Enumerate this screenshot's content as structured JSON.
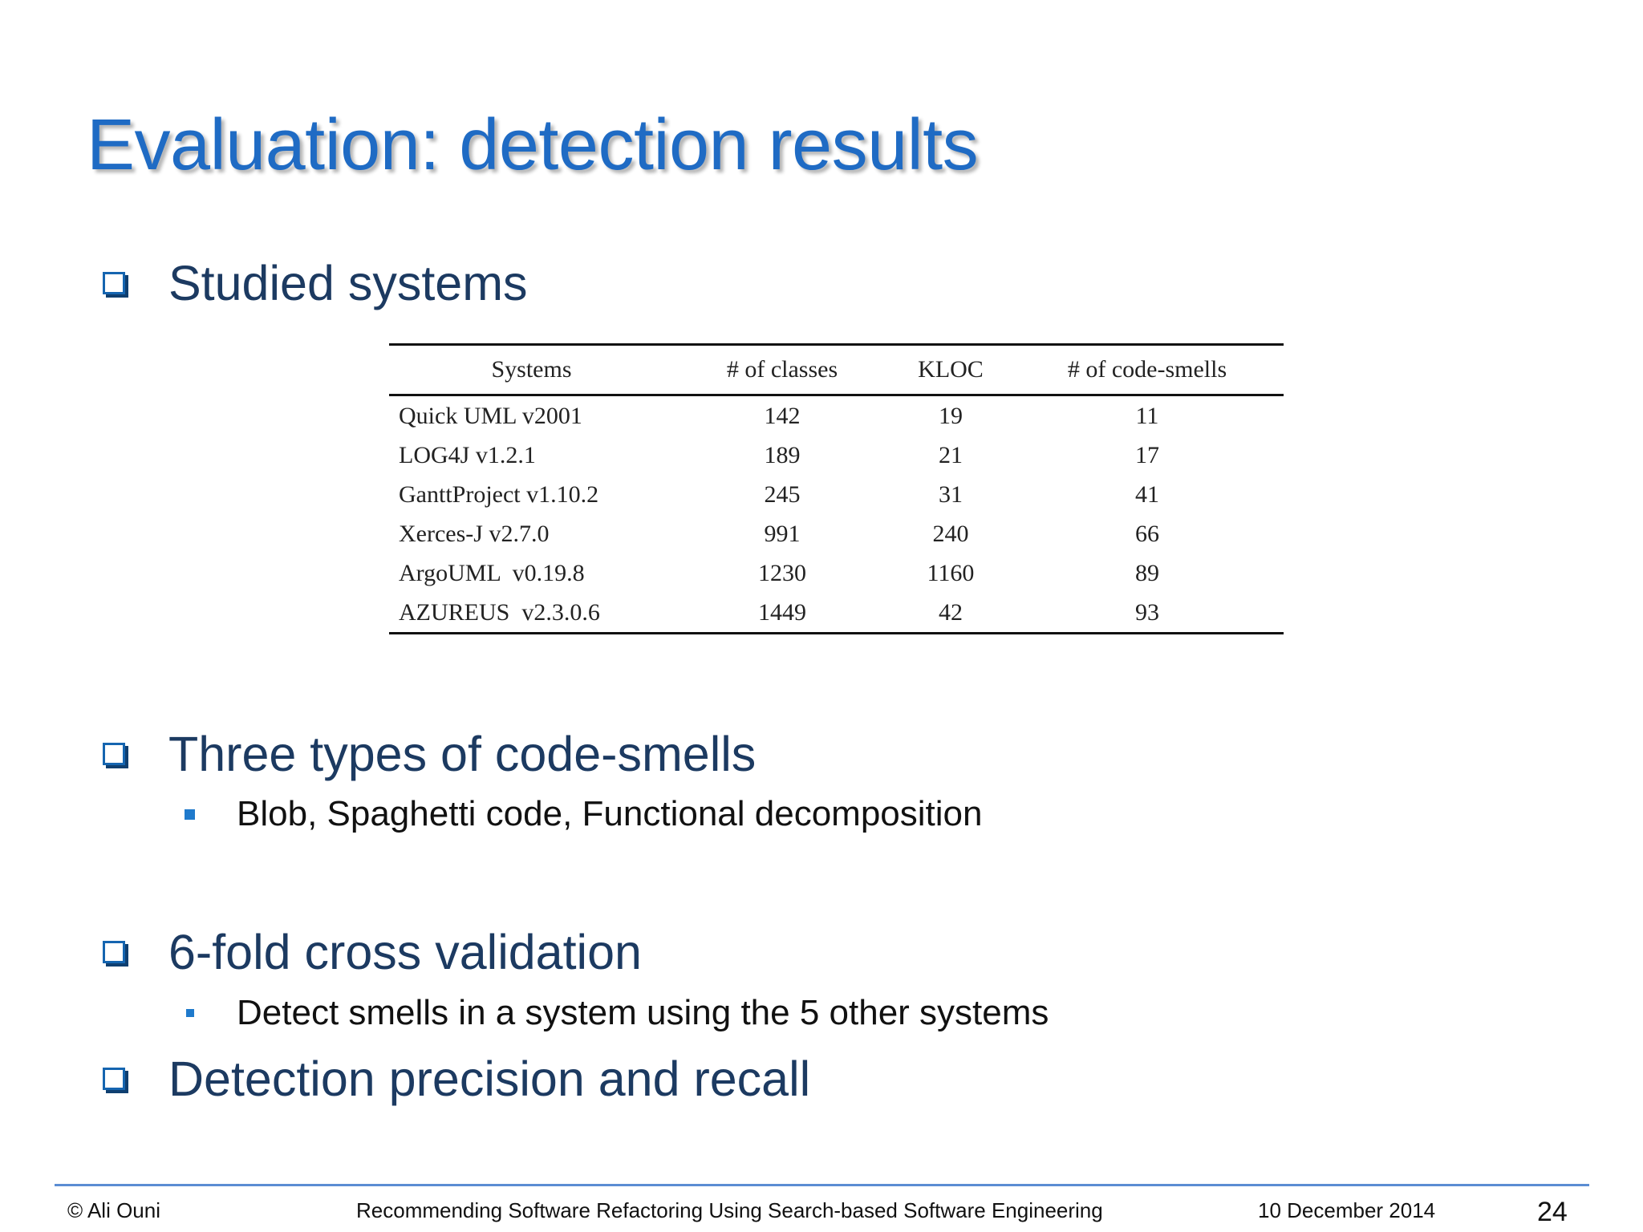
{
  "slide": {
    "title": "Evaluation: detection results",
    "bullets": [
      {
        "text": "Studied systems"
      },
      {
        "text": "Three types of code-smells",
        "sub": "Blob, Spaghetti code, Functional decomposition"
      },
      {
        "text": "6-fold cross validation",
        "sub": "Detect smells in a system using the 5 other systems"
      },
      {
        "text": "Detection precision and recall"
      }
    ],
    "table": {
      "headers": [
        "Systems",
        "# of classes",
        "KLOC",
        "# of code-smells"
      ],
      "rows": [
        [
          "Quick UML v2001",
          "142",
          "19",
          "11"
        ],
        [
          "LOG4J v1.2.1",
          "189",
          "21",
          "17"
        ],
        [
          "GanttProject v1.10.2",
          "245",
          "31",
          "41"
        ],
        [
          "Xerces-J v2.7.0",
          "991",
          "240",
          "66"
        ],
        [
          "ArgoUML  v0.19.8",
          "1230",
          "1160",
          "89"
        ],
        [
          "AZUREUS  v2.3.0.6",
          "1449",
          "42",
          "93"
        ]
      ]
    },
    "footer": {
      "author": "© Ali Ouni",
      "talk_title": "Recommending Software Refactoring Using Search-based Software Engineering",
      "date": "10 December 2014",
      "page_number": "24"
    },
    "colors": {
      "title": "#1f6bc4",
      "bullet_text": "#1c3a61",
      "bullet_box": "#1565b0",
      "sub_bullet": "#1f7acc",
      "footer_rule": "#5b8dd3"
    }
  }
}
